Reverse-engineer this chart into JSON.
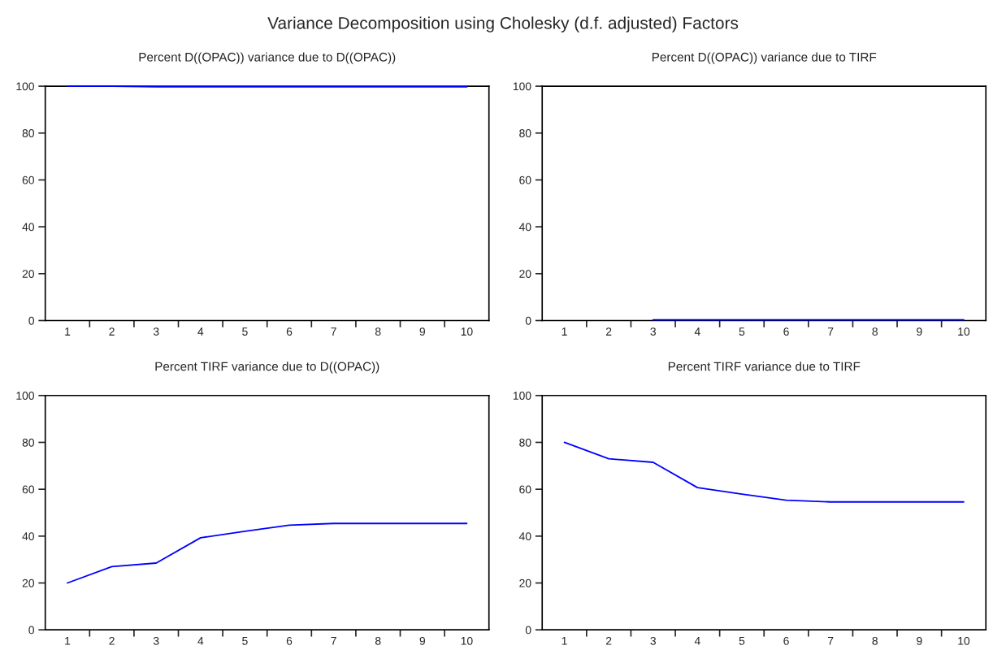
{
  "chart_data": [
    {
      "type": "line",
      "title": "Percent D((OPAC)) variance due to D((OPAC))",
      "annotations": [
        "Variance Decomposition using Cholesky (d.f. adjusted) Factors"
      ],
      "categories": [
        "1",
        "2",
        "3",
        "4",
        "5",
        "6",
        "7",
        "8",
        "9",
        "10"
      ],
      "ylim": [
        0,
        100
      ],
      "yticks": [
        0,
        20,
        40,
        60,
        80,
        100
      ],
      "grid": false,
      "series": [
        {
          "color": "#0000ff",
          "values": [
            100,
            100,
            99.7,
            99.7,
            99.7,
            99.7,
            99.7,
            99.7,
            99.7,
            99.7
          ]
        }
      ]
    },
    {
      "type": "line",
      "title": "Percent D((OPAC)) variance due to TIRF",
      "categories": [
        "1",
        "2",
        "3",
        "4",
        "5",
        "6",
        "7",
        "8",
        "9",
        "10"
      ],
      "ylim": [
        0,
        100
      ],
      "yticks": [
        0,
        20,
        40,
        60,
        80,
        100
      ],
      "grid": false,
      "series": [
        {
          "color": "#0000ff",
          "values": [
            null,
            null,
            0.3,
            0.3,
            0.3,
            0.3,
            0.3,
            0.3,
            0.3,
            0.3
          ]
        }
      ]
    },
    {
      "type": "line",
      "title": "Percent TIRF variance due to D((OPAC))",
      "categories": [
        "1",
        "2",
        "3",
        "4",
        "5",
        "6",
        "7",
        "8",
        "9",
        "10"
      ],
      "ylim": [
        0,
        100
      ],
      "yticks": [
        0,
        20,
        40,
        60,
        80,
        100
      ],
      "grid": false,
      "series": [
        {
          "color": "#0000ff",
          "values": [
            20,
            27,
            28.5,
            39.3,
            42.1,
            44.7,
            45.4,
            45.4,
            45.4,
            45.4
          ]
        }
      ]
    },
    {
      "type": "line",
      "title": "Percent TIRF variance due to TIRF",
      "categories": [
        "1",
        "2",
        "3",
        "4",
        "5",
        "6",
        "7",
        "8",
        "9",
        "10"
      ],
      "ylim": [
        0,
        100
      ],
      "yticks": [
        0,
        20,
        40,
        60,
        80,
        100
      ],
      "grid": false,
      "series": [
        {
          "color": "#0000ff",
          "values": [
            80,
            73,
            71.5,
            60.7,
            57.9,
            55.3,
            54.6,
            54.6,
            54.6,
            54.6
          ]
        }
      ]
    }
  ]
}
